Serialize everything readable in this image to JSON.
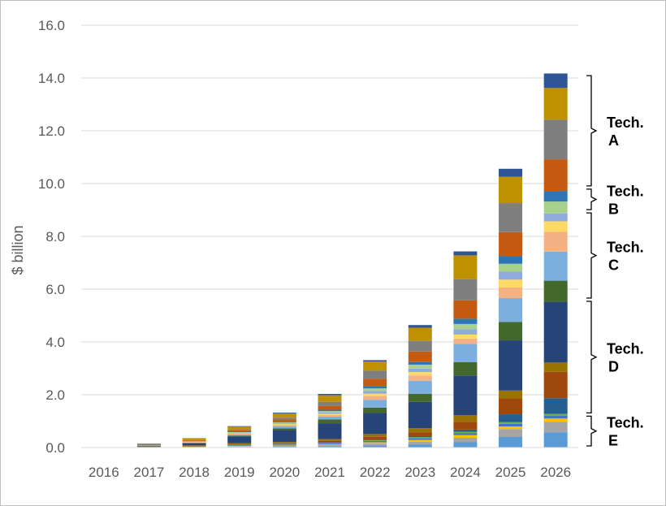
{
  "chart_data": {
    "type": "bar",
    "stacked": true,
    "ylabel": "$ billion",
    "ylim": [
      0,
      16
    ],
    "yticks": [
      "0.0",
      "2.0",
      "4.0",
      "6.0",
      "8.0",
      "10.0",
      "12.0",
      "14.0",
      "16.0"
    ],
    "grid": true,
    "categories": [
      "2016",
      "2017",
      "2018",
      "2019",
      "2020",
      "2021",
      "2022",
      "2023",
      "2024",
      "2025",
      "2026"
    ],
    "series": [
      {
        "color": "#5b9bd5",
        "values": [
          0,
          0.005,
          0.01,
          0.02,
          0.03,
          0.05,
          0.08,
          0.12,
          0.2,
          0.4,
          0.58
        ]
      },
      {
        "color": "#a5a5a5",
        "values": [
          0,
          0.005,
          0.01,
          0.02,
          0.03,
          0.04,
          0.07,
          0.1,
          0.17,
          0.3,
          0.4
        ]
      },
      {
        "color": "#ffc000",
        "values": [
          0,
          0.01,
          0.01,
          0.02,
          0.02,
          0.03,
          0.05,
          0.07,
          0.1,
          0.1,
          0.12
        ]
      },
      {
        "color": "#4472c4",
        "values": [
          0,
          0.005,
          0.01,
          0.02,
          0.03,
          0.04,
          0.05,
          0.06,
          0.08,
          0.1,
          0.1
        ]
      },
      {
        "color": "#70ad47",
        "values": [
          0,
          0.005,
          0.01,
          0.02,
          0.02,
          0.02,
          0.03,
          0.04,
          0.05,
          0.06,
          0.07
        ]
      },
      {
        "color": "#255e91",
        "values": [
          0,
          0.01,
          0.01,
          0.02,
          0.02,
          0.02,
          0.03,
          0.04,
          0.08,
          0.3,
          0.6
        ]
      },
      {
        "color": "#9e480e",
        "values": [
          0,
          0.005,
          0.01,
          0.02,
          0.03,
          0.05,
          0.1,
          0.15,
          0.3,
          0.6,
          1.0
        ]
      },
      {
        "color": "#997300",
        "values": [
          0,
          0.005,
          0.01,
          0.03,
          0.03,
          0.07,
          0.1,
          0.15,
          0.25,
          0.3,
          0.35
        ]
      },
      {
        "color": "#264478",
        "values": [
          0,
          0.02,
          0.08,
          0.25,
          0.45,
          0.6,
          0.8,
          1.0,
          1.5,
          1.9,
          2.3
        ]
      },
      {
        "color": "#43682b",
        "values": [
          0,
          0.005,
          0.01,
          0.03,
          0.07,
          0.15,
          0.2,
          0.3,
          0.5,
          0.7,
          0.8
        ]
      },
      {
        "color": "#7cafdd",
        "values": [
          0,
          0.005,
          0.02,
          0.04,
          0.08,
          0.1,
          0.3,
          0.5,
          0.7,
          0.9,
          1.1
        ]
      },
      {
        "color": "#f4b183",
        "values": [
          0,
          0.005,
          0.02,
          0.03,
          0.05,
          0.06,
          0.15,
          0.2,
          0.2,
          0.4,
          0.75
        ]
      },
      {
        "color": "#ffd966",
        "values": [
          0,
          0.005,
          0.01,
          0.02,
          0.03,
          0.05,
          0.08,
          0.13,
          0.15,
          0.3,
          0.4
        ]
      },
      {
        "color": "#8faadc",
        "values": [
          0,
          0.005,
          0.01,
          0.02,
          0.03,
          0.05,
          0.1,
          0.13,
          0.2,
          0.3,
          0.3
        ]
      },
      {
        "color": "#a9d18e",
        "values": [
          0,
          0.005,
          0.01,
          0.02,
          0.03,
          0.05,
          0.1,
          0.15,
          0.2,
          0.3,
          0.45
        ]
      },
      {
        "color": "#2e75b6",
        "values": [
          0,
          0.005,
          0.01,
          0.02,
          0.03,
          0.05,
          0.07,
          0.1,
          0.2,
          0.3,
          0.4
        ]
      },
      {
        "color": "#c55a11",
        "values": [
          0,
          0.01,
          0.03,
          0.05,
          0.08,
          0.15,
          0.3,
          0.4,
          0.7,
          0.9,
          1.2
        ]
      },
      {
        "color": "#7f7f7f",
        "values": [
          0,
          0.005,
          0.02,
          0.04,
          0.07,
          0.15,
          0.3,
          0.4,
          0.8,
          1.1,
          1.5
        ]
      },
      {
        "color": "#bf9000",
        "values": [
          0,
          0.02,
          0.04,
          0.1,
          0.16,
          0.25,
          0.35,
          0.5,
          0.9,
          1.0,
          1.2
        ]
      },
      {
        "color": "#2f5597",
        "values": [
          0,
          0.005,
          0.01,
          0.02,
          0.03,
          0.05,
          0.05,
          0.1,
          0.15,
          0.3,
          0.55
        ]
      }
    ],
    "groups": [
      {
        "label": "Tech. A",
        "range": [
          9.85,
          14.15
        ]
      },
      {
        "label": "Tech. B",
        "range": [
          8.95,
          9.85
        ]
      },
      {
        "label": "Tech. C",
        "range": [
          5.6,
          8.95
        ]
      },
      {
        "label": "Tech. D",
        "range": [
          1.25,
          5.6
        ]
      },
      {
        "label": "Tech. E",
        "range": [
          0.0,
          1.25
        ]
      }
    ]
  }
}
